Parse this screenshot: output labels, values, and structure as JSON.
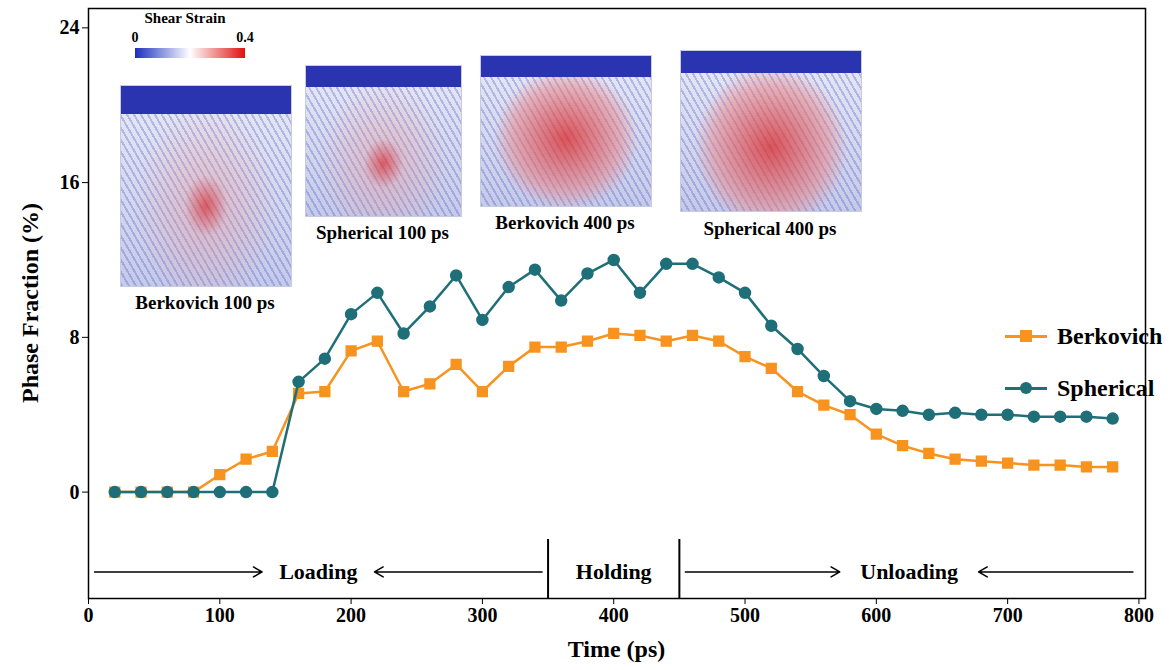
{
  "chart_data": {
    "type": "line",
    "x_label": "Time (ps)",
    "y_label": "Phase Fraction (%)",
    "xlim": [
      0,
      805
    ],
    "ylim": [
      -5.5,
      25
    ],
    "xticks": [
      0,
      100,
      200,
      300,
      400,
      500,
      600,
      700,
      800
    ],
    "yticks": [
      0,
      8,
      16,
      24
    ],
    "legend": "right",
    "x": [
      20,
      40,
      60,
      80,
      100,
      120,
      140,
      160,
      180,
      200,
      220,
      240,
      260,
      280,
      300,
      320,
      340,
      360,
      380,
      400,
      420,
      440,
      460,
      480,
      500,
      520,
      540,
      560,
      580,
      600,
      620,
      640,
      660,
      680,
      700,
      720,
      740,
      760,
      780
    ],
    "series": [
      {
        "name": "Berkovich",
        "color": "#f7931e",
        "marker": "square",
        "values": [
          0,
          0,
          0,
          0,
          0.9,
          1.7,
          2.1,
          5.1,
          5.2,
          7.3,
          7.8,
          5.2,
          5.6,
          6.6,
          5.2,
          6.5,
          7.5,
          7.5,
          7.8,
          8.2,
          8.1,
          7.8,
          8.1,
          7.8,
          7.0,
          6.4,
          5.2,
          4.5,
          4.0,
          3.0,
          2.4,
          2.0,
          1.7,
          1.6,
          1.5,
          1.4,
          1.4,
          1.3,
          1.3
        ]
      },
      {
        "name": "Spherical",
        "color": "#1f6f78",
        "marker": "circle",
        "values": [
          0,
          0,
          0,
          0,
          0,
          0,
          0,
          5.7,
          6.9,
          9.2,
          10.3,
          8.2,
          9.6,
          11.2,
          8.9,
          10.6,
          11.5,
          9.9,
          11.3,
          12.0,
          10.3,
          11.8,
          11.8,
          11.1,
          10.3,
          8.6,
          7.4,
          6.0,
          4.7,
          4.3,
          4.2,
          4.0,
          4.1,
          4.0,
          4.0,
          3.9,
          3.9,
          3.9,
          3.8
        ]
      }
    ],
    "phases": [
      {
        "label": "Loading",
        "start": 0,
        "end": 350
      },
      {
        "label": "Holding",
        "start": 350,
        "end": 450
      },
      {
        "label": "Unloading",
        "start": 450,
        "end": 800
      }
    ],
    "insets": [
      "Berkovich 100 ps",
      "Spherical 100 ps",
      "Berkovich 400 ps",
      "Spherical 400 ps"
    ],
    "colorbar": {
      "title": "Shear Strain",
      "range": [
        0,
        0.4
      ],
      "ticks": [
        0,
        0.4
      ]
    }
  }
}
